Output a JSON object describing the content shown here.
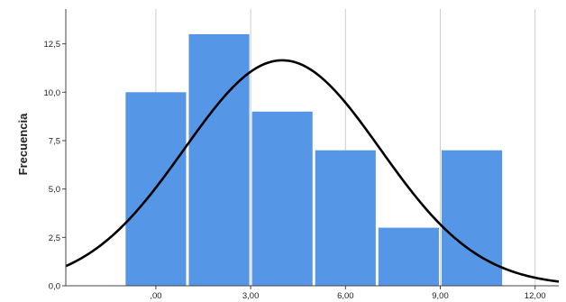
{
  "chart_data": {
    "type": "bar",
    "subtype": "histogram-with-normal-curve",
    "ylabel": "Frecuencia",
    "xlabel": "",
    "bins": [
      {
        "from": -1.0,
        "to": 1.0,
        "count": 10
      },
      {
        "from": 1.0,
        "to": 3.0,
        "count": 13
      },
      {
        "from": 3.0,
        "to": 5.0,
        "count": 9
      },
      {
        "from": 5.0,
        "to": 7.0,
        "count": 7
      },
      {
        "from": 7.0,
        "to": 9.0,
        "count": 3
      },
      {
        "from": 9.0,
        "to": 11.0,
        "count": 7
      }
    ],
    "normal_curve": {
      "mean": 4.0,
      "sd": 3.1,
      "peak": 11.65
    },
    "xlim": [
      -2.85,
      12.75
    ],
    "ylim": [
      0,
      14.3
    ],
    "x_ticks": [
      0,
      3,
      6,
      9,
      12
    ],
    "x_tick_labels": [
      ",00",
      "3,00",
      "6,00",
      "9,00",
      "12,00"
    ],
    "y_ticks": [
      0,
      2.5,
      5,
      7.5,
      10,
      12.5
    ],
    "y_tick_labels": [
      "0,0",
      "2,5",
      "5,0",
      "7,5",
      "10,0",
      "12,5"
    ],
    "grid": true,
    "colors": {
      "bar": "#5596e6",
      "curve": "#000000",
      "grid": "#cccccc",
      "axis": "#444444"
    }
  }
}
